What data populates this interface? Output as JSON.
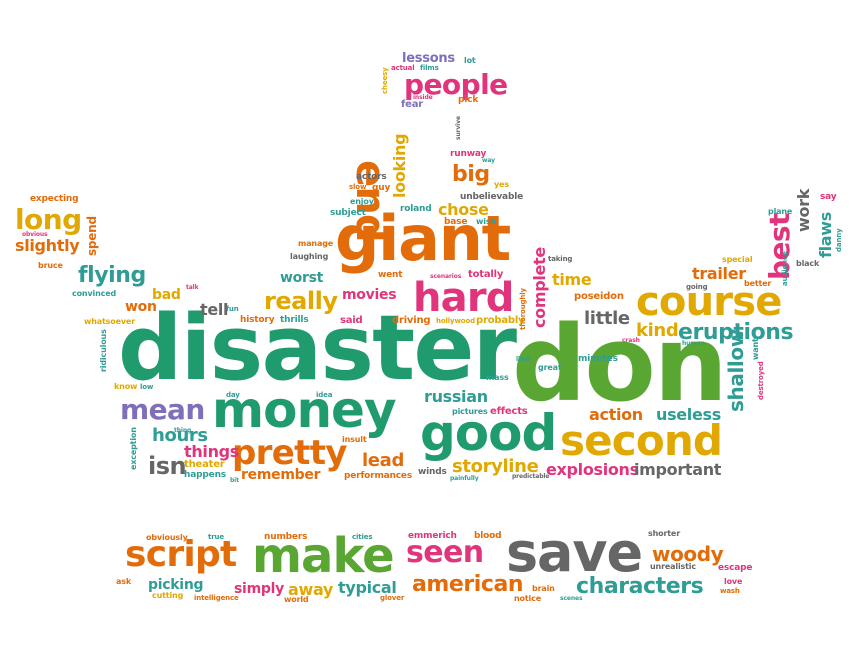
{
  "colors": {
    "green": "#1f9b6e",
    "lime": "#5aa632",
    "orange": "#e36c0a",
    "yellow": "#e0a800",
    "pink": "#e0357c",
    "purple": "#7f6fba",
    "gray": "#666666",
    "teal": "#2f9d95"
  },
  "words": [
    {
      "text": "disaster",
      "color": "green"
    },
    {
      "text": "don",
      "color": "lime"
    },
    {
      "text": "giant",
      "color": "orange"
    },
    {
      "text": "money",
      "color": "green"
    },
    {
      "text": "good",
      "color": "green"
    },
    {
      "text": "second",
      "color": "yellow"
    },
    {
      "text": "course",
      "color": "yellow"
    },
    {
      "text": "hard",
      "color": "pink"
    },
    {
      "text": "pretty",
      "color": "orange"
    },
    {
      "text": "mean",
      "color": "purple"
    },
    {
      "text": "end",
      "color": "orange"
    },
    {
      "text": "best",
      "color": "pink"
    },
    {
      "text": "people",
      "color": "pink"
    },
    {
      "text": "long",
      "color": "yellow"
    },
    {
      "text": "flying",
      "color": "teal"
    },
    {
      "text": "really",
      "color": "yellow"
    },
    {
      "text": "save",
      "color": "gray"
    },
    {
      "text": "make",
      "color": "lime"
    },
    {
      "text": "script",
      "color": "orange"
    },
    {
      "text": "seen",
      "color": "pink"
    },
    {
      "text": "american",
      "color": "orange"
    },
    {
      "text": "characters",
      "color": "teal"
    },
    {
      "text": "woody",
      "color": "orange"
    },
    {
      "text": "hours",
      "color": "teal"
    },
    {
      "text": "isn",
      "color": "gray"
    },
    {
      "text": "things",
      "color": "pink"
    },
    {
      "text": "remember",
      "color": "orange"
    },
    {
      "text": "lead",
      "color": "orange"
    },
    {
      "text": "storyline",
      "color": "yellow"
    },
    {
      "text": "explosions",
      "color": "pink"
    },
    {
      "text": "important",
      "color": "gray"
    },
    {
      "text": "eruptions",
      "color": "teal"
    },
    {
      "text": "kind",
      "color": "yellow"
    },
    {
      "text": "little",
      "color": "gray"
    },
    {
      "text": "action",
      "color": "orange"
    },
    {
      "text": "useless",
      "color": "teal"
    },
    {
      "text": "shallow",
      "color": "teal"
    },
    {
      "text": "complete",
      "color": "pink"
    },
    {
      "text": "looking",
      "color": "yellow"
    },
    {
      "text": "big",
      "color": "orange"
    },
    {
      "text": "chose",
      "color": "yellow"
    },
    {
      "text": "time",
      "color": "yellow"
    },
    {
      "text": "trailer",
      "color": "orange"
    },
    {
      "text": "work",
      "color": "gray"
    },
    {
      "text": "flaws",
      "color": "teal"
    },
    {
      "text": "slightly",
      "color": "orange"
    },
    {
      "text": "spend",
      "color": "orange"
    },
    {
      "text": "bad",
      "color": "yellow"
    },
    {
      "text": "won",
      "color": "orange"
    },
    {
      "text": "tell",
      "color": "gray"
    },
    {
      "text": "worst",
      "color": "teal"
    },
    {
      "text": "movies",
      "color": "pink"
    },
    {
      "text": "russian",
      "color": "teal"
    },
    {
      "text": "lessons",
      "color": "purple"
    },
    {
      "text": "typical",
      "color": "teal"
    },
    {
      "text": "simply",
      "color": "pink"
    },
    {
      "text": "away",
      "color": "yellow"
    },
    {
      "text": "picking",
      "color": "teal"
    },
    {
      "text": "expecting",
      "color": "orange"
    },
    {
      "text": "bruce",
      "color": "orange"
    },
    {
      "text": "convinced",
      "color": "teal"
    },
    {
      "text": "whatsoever",
      "color": "yellow"
    },
    {
      "text": "ridiculous",
      "color": "teal"
    },
    {
      "text": "know",
      "color": "yellow"
    },
    {
      "text": "low",
      "color": "teal"
    },
    {
      "text": "day",
      "color": "teal"
    },
    {
      "text": "idea",
      "color": "teal"
    },
    {
      "text": "exception",
      "color": "teal"
    },
    {
      "text": "theater",
      "color": "yellow"
    },
    {
      "text": "happens",
      "color": "teal"
    },
    {
      "text": "insult",
      "color": "orange"
    },
    {
      "text": "winds",
      "color": "gray"
    },
    {
      "text": "performances",
      "color": "orange"
    },
    {
      "text": "effects",
      "color": "pink"
    },
    {
      "text": "pictures",
      "color": "teal"
    },
    {
      "text": "mass",
      "color": "teal"
    },
    {
      "text": "great",
      "color": "teal"
    },
    {
      "text": "history",
      "color": "orange"
    },
    {
      "text": "thrills",
      "color": "teal"
    },
    {
      "text": "said",
      "color": "pink"
    },
    {
      "text": "driving",
      "color": "orange"
    },
    {
      "text": "hollywood",
      "color": "yellow"
    },
    {
      "text": "probably",
      "color": "yellow"
    },
    {
      "text": "went",
      "color": "orange"
    },
    {
      "text": "totally",
      "color": "pink"
    },
    {
      "text": "poseidon",
      "color": "orange"
    },
    {
      "text": "minutes",
      "color": "teal"
    },
    {
      "text": "thoroughly",
      "color": "orange"
    },
    {
      "text": "manage",
      "color": "orange"
    },
    {
      "text": "subject",
      "color": "teal"
    },
    {
      "text": "enjoy",
      "color": "teal"
    },
    {
      "text": "roland",
      "color": "teal"
    },
    {
      "text": "base",
      "color": "orange"
    },
    {
      "text": "wish",
      "color": "teal"
    },
    {
      "text": "unbelievable",
      "color": "gray"
    },
    {
      "text": "yes",
      "color": "yellow"
    },
    {
      "text": "runway",
      "color": "pink"
    },
    {
      "text": "actors",
      "color": "gray"
    },
    {
      "text": "slow",
      "color": "orange"
    },
    {
      "text": "guy",
      "color": "orange"
    },
    {
      "text": "fear",
      "color": "purple"
    },
    {
      "text": "pick",
      "color": "orange"
    },
    {
      "text": "cheesy",
      "color": "yellow"
    },
    {
      "text": "actual",
      "color": "pink"
    },
    {
      "text": "films",
      "color": "teal"
    },
    {
      "text": "lot",
      "color": "teal"
    },
    {
      "text": "laughing",
      "color": "gray"
    },
    {
      "text": "special",
      "color": "yellow"
    },
    {
      "text": "plane",
      "color": "teal"
    },
    {
      "text": "say",
      "color": "pink"
    },
    {
      "text": "better",
      "color": "orange"
    },
    {
      "text": "going",
      "color": "gray"
    },
    {
      "text": "black",
      "color": "gray"
    },
    {
      "text": "audience",
      "color": "teal"
    },
    {
      "text": "danny",
      "color": "teal"
    },
    {
      "text": "want",
      "color": "teal"
    },
    {
      "text": "destroyed",
      "color": "pink"
    },
    {
      "text": "taking",
      "color": "gray"
    },
    {
      "text": "obviously",
      "color": "orange"
    },
    {
      "text": "true",
      "color": "teal"
    },
    {
      "text": "numbers",
      "color": "orange"
    },
    {
      "text": "cities",
      "color": "teal"
    },
    {
      "text": "emmerich",
      "color": "pink"
    },
    {
      "text": "blood",
      "color": "orange"
    },
    {
      "text": "shorter",
      "color": "gray"
    },
    {
      "text": "unrealistic",
      "color": "gray"
    },
    {
      "text": "escape",
      "color": "pink"
    },
    {
      "text": "love",
      "color": "pink"
    },
    {
      "text": "wash",
      "color": "orange"
    },
    {
      "text": "ask",
      "color": "orange"
    },
    {
      "text": "cutting",
      "color": "yellow"
    },
    {
      "text": "intelligence",
      "color": "orange"
    },
    {
      "text": "world",
      "color": "orange"
    },
    {
      "text": "glover",
      "color": "orange"
    },
    {
      "text": "brain",
      "color": "orange"
    },
    {
      "text": "notice",
      "color": "orange"
    },
    {
      "text": "scenes",
      "color": "teal"
    },
    {
      "text": "fun",
      "color": "teal"
    },
    {
      "text": "talk",
      "color": "pink"
    },
    {
      "text": "thing",
      "color": "teal"
    },
    {
      "text": "crash",
      "color": "pink"
    },
    {
      "text": "human",
      "color": "teal"
    },
    {
      "text": "predictable",
      "color": "gray"
    },
    {
      "text": "painfully",
      "color": "teal"
    },
    {
      "text": "scenarios",
      "color": "pink"
    },
    {
      "text": "survive",
      "color": "gray"
    },
    {
      "text": "way",
      "color": "teal"
    },
    {
      "text": "obvious",
      "color": "pink"
    },
    {
      "text": "limit",
      "color": "teal"
    },
    {
      "text": "inside",
      "color": "pink"
    },
    {
      "text": "bit",
      "color": "teal"
    }
  ]
}
